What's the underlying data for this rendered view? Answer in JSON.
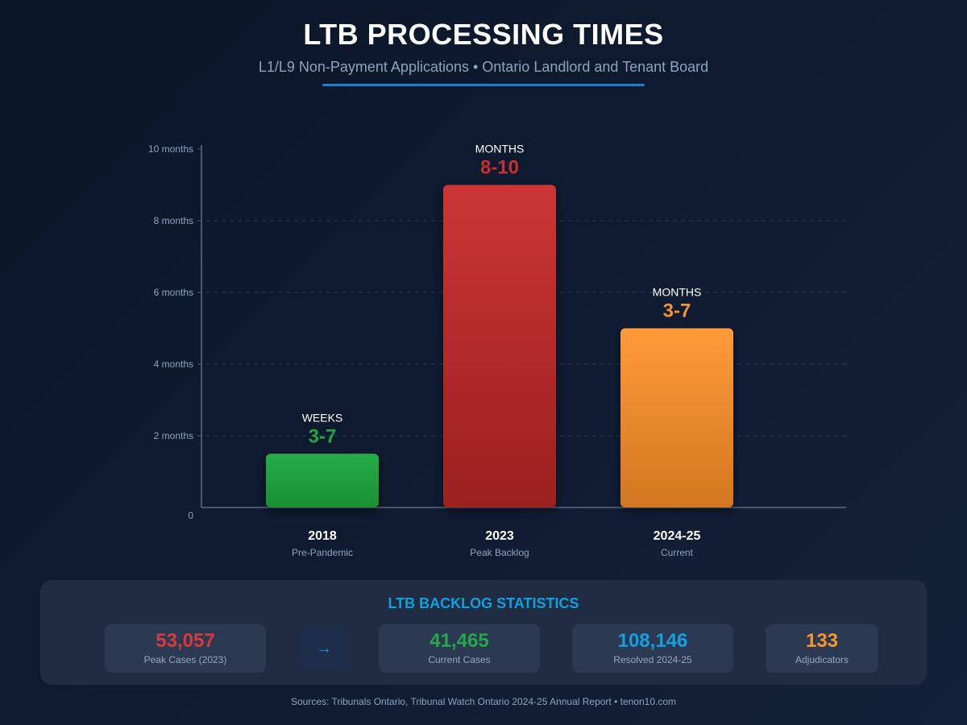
{
  "header": {
    "title": "LTB PROCESSING TIMES",
    "subtitle": "L1/L9 Non-Payment Applications • Ontario Landlord and Tenant Board"
  },
  "chart_data": {
    "type": "bar",
    "title": "LTB PROCESSING TIMES",
    "categories": [
      "2018",
      "2023",
      "2024-25"
    ],
    "category_sublabels": [
      "Pre-Pandemic",
      "Peak Backlog",
      "Current"
    ],
    "values": [
      1.5,
      9,
      5
    ],
    "value_labels": [
      {
        "unit": "WEEKS",
        "range": "3-7"
      },
      {
        "unit": "MONTHS",
        "range": "8-10"
      },
      {
        "unit": "MONTHS",
        "range": "3-7"
      }
    ],
    "colors": [
      "#22a645",
      "#c53030",
      "#f59331"
    ],
    "ylim": [
      0,
      10
    ],
    "yticks": [
      0,
      2,
      4,
      6,
      8,
      10
    ],
    "ytick_labels": [
      "0",
      "2 months",
      "4 months",
      "6 months",
      "8 months",
      "10 months"
    ],
    "grid": true
  },
  "stats": {
    "title": "LTB BACKLOG STATISTICS",
    "arrow": "→",
    "cards": [
      {
        "value": "53,057",
        "label": "Peak Cases (2023)",
        "color": "#d63a3a"
      },
      {
        "value": "41,465",
        "label": "Current Cases",
        "color": "#25a84a"
      },
      {
        "value": "108,146",
        "label": "Resolved 2024-25",
        "color": "#12a0e0"
      },
      {
        "value": "133",
        "label": "Adjudicators",
        "color": "#f5952f"
      }
    ]
  },
  "footer": {
    "sources": "Sources: Tribunals Ontario, Tribunal Watch Ontario 2024-25 Annual Report • tenon10.com"
  }
}
